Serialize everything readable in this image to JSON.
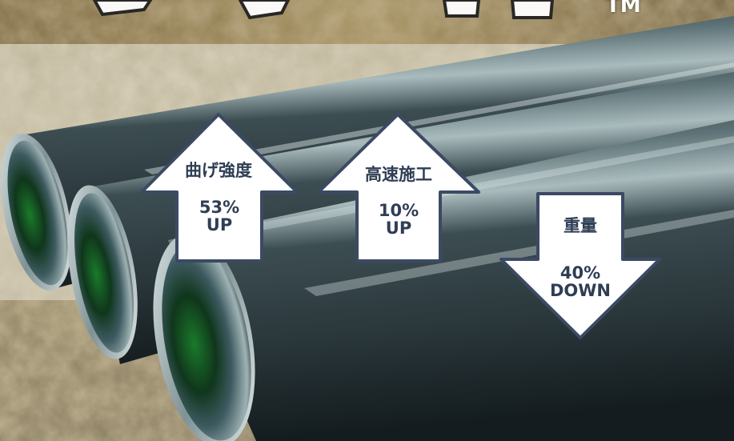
{
  "banner": {
    "trademark": "TM"
  },
  "arrows": [
    {
      "title": "曲げ強度",
      "value": "53%",
      "direction_label": "UP",
      "direction": "up"
    },
    {
      "title": "高速施工",
      "value": "10%",
      "direction_label": "UP",
      "direction": "up"
    },
    {
      "title": "重量",
      "value": "40%",
      "direction_label": "DOWN",
      "direction": "down"
    }
  ],
  "colors": {
    "arrow_fill": "#ffffff",
    "arrow_outline": "#3b4a64",
    "arrow_text": "#2f3e54",
    "pipe_steel": "#3a4a50",
    "pipe_inner_green": "#1f7a2a",
    "rust_ground": "#8a7b58"
  }
}
